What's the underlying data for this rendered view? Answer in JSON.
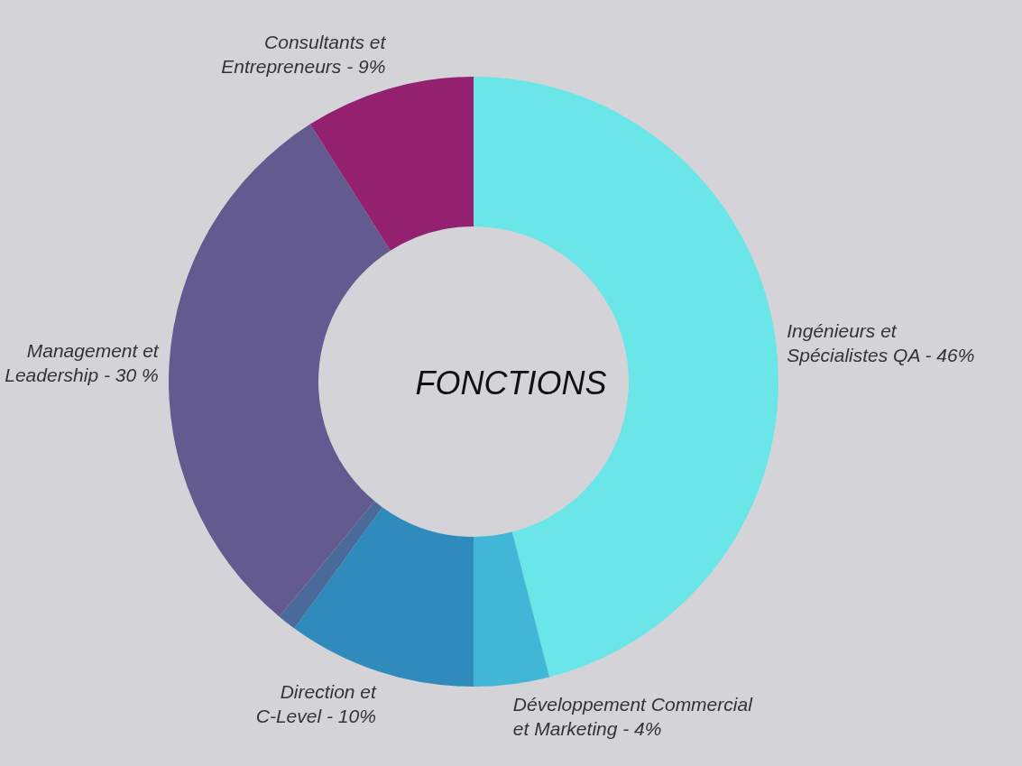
{
  "chart_data": {
    "type": "donut",
    "title": "FONCTIONS",
    "categories": [
      "Ingénieurs et Spécialistes QA",
      "Développement Commercial et Marketing",
      "Direction et C-Level",
      null,
      "Management et Leadership",
      "Consultants et Entrepreneurs"
    ],
    "values": [
      46,
      4,
      10,
      1,
      30,
      9
    ],
    "value_labels": [
      "46%",
      "4%",
      "10%",
      null,
      "30 %",
      "9%"
    ],
    "colors": [
      "#6ae5e8",
      "#41b6d6",
      "#2e8bbb",
      "#4a6a9a",
      "#635a8f",
      "#932170"
    ],
    "legend": false
  }
}
